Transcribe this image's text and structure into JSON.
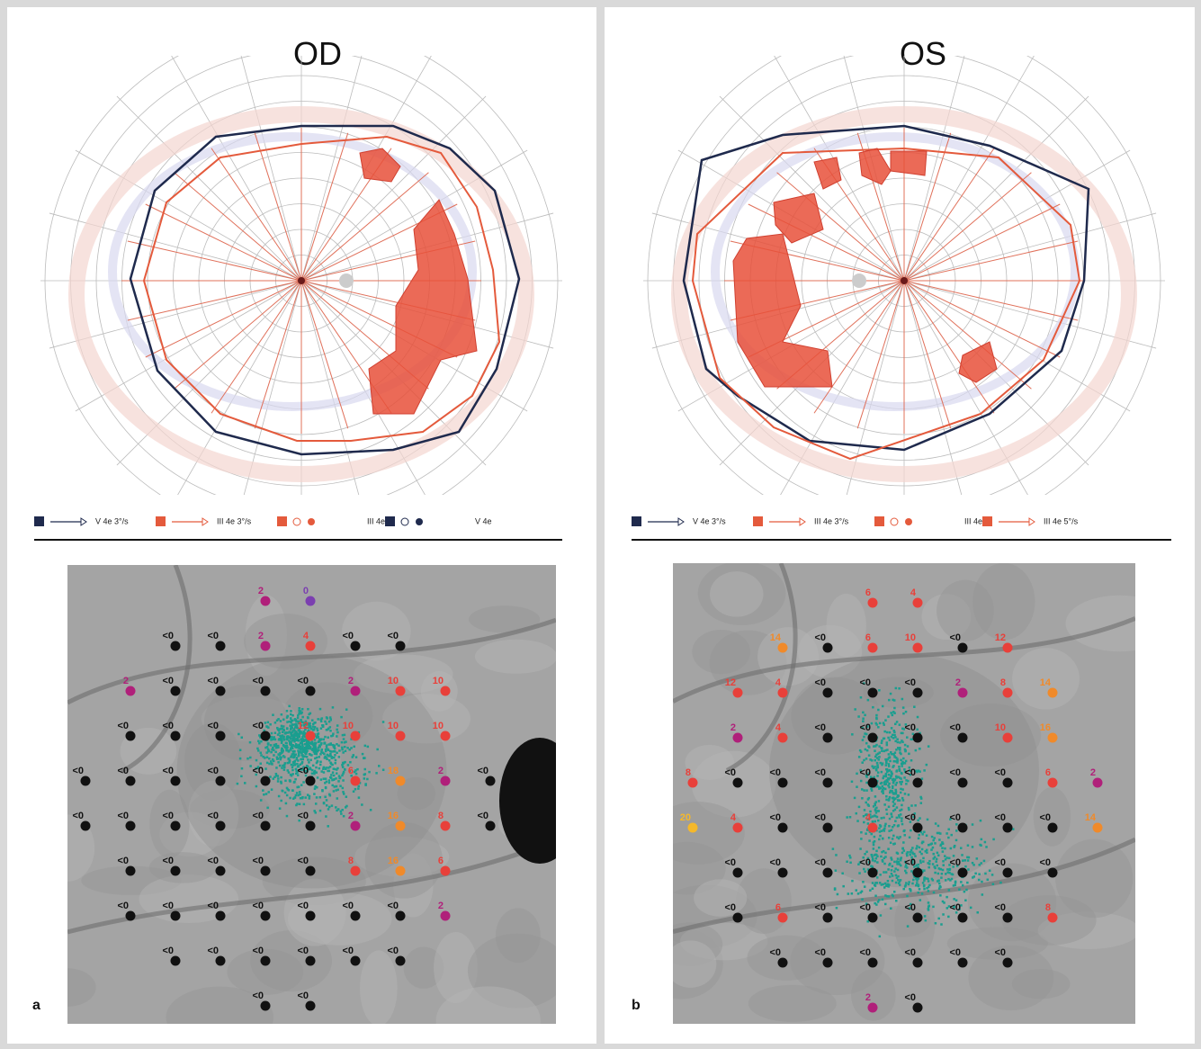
{
  "panels": [
    {
      "title": "OD",
      "label": "a",
      "legend": [
        "V 4e 3°/s",
        "III 4e 3°/s",
        "III 4e",
        "V 4e"
      ],
      "grid": [
        [
          null,
          null,
          null,
          null,
          "2",
          "0",
          null,
          null,
          null,
          null
        ],
        [
          null,
          null,
          "<0",
          "<0",
          "2",
          "4",
          "<0",
          "<0",
          null,
          null
        ],
        [
          null,
          "2",
          "<0",
          "<0",
          "<0",
          "<0",
          "2",
          "10",
          "10",
          null
        ],
        [
          null,
          "<0",
          "<0",
          "<0",
          "<0",
          "12",
          "10",
          "10",
          "10",
          null
        ],
        [
          "<0",
          "<0",
          "<0",
          "<0",
          "<0",
          "<0",
          "6",
          "18",
          "2",
          "<0"
        ],
        [
          "<0",
          "<0",
          "<0",
          "<0",
          "<0",
          "<0",
          "2",
          "16",
          "8",
          "<0"
        ],
        [
          null,
          "<0",
          "<0",
          "<0",
          "<0",
          "<0",
          "8",
          "16",
          "6",
          null
        ],
        [
          null,
          "<0",
          "<0",
          "<0",
          "<0",
          "<0",
          "<0",
          "<0",
          "2",
          null
        ],
        [
          null,
          null,
          "<0",
          "<0",
          "<0",
          "<0",
          "<0",
          "<0",
          null,
          null
        ],
        [
          null,
          null,
          null,
          null,
          "<0",
          "<0",
          null,
          null,
          null,
          null
        ]
      ]
    },
    {
      "title": "OS",
      "label": "b",
      "legend": [
        "V 4e 3°/s",
        "III 4e 3°/s",
        "III 4e",
        "III 4e 5°/s"
      ],
      "grid": [
        [
          null,
          null,
          null,
          null,
          "6",
          "4",
          null,
          null,
          null,
          null
        ],
        [
          null,
          null,
          "14",
          "<0",
          "6",
          "10",
          "<0",
          "12",
          null,
          null
        ],
        [
          null,
          "12",
          "4",
          "<0",
          "<0",
          "<0",
          "2",
          "8",
          "14",
          null
        ],
        [
          null,
          "2",
          "4",
          "<0",
          "<0",
          "<0",
          "<0",
          "10",
          "16",
          null
        ],
        [
          "8",
          "<0",
          "<0",
          "<0",
          "<0",
          "<0",
          "<0",
          "<0",
          "6",
          "2"
        ],
        [
          "20",
          "4",
          "<0",
          "<0",
          "4",
          "<0",
          "<0",
          "<0",
          "<0",
          "14"
        ],
        [
          null,
          "<0",
          "<0",
          "<0",
          "<0",
          "<0",
          "<0",
          "<0",
          "<0",
          null
        ],
        [
          null,
          "<0",
          "6",
          "<0",
          "<0",
          "<0",
          "<0",
          "<0",
          "8",
          null
        ],
        [
          null,
          null,
          "<0",
          "<0",
          "<0",
          "<0",
          "<0",
          "<0",
          null,
          null
        ],
        [
          null,
          null,
          null,
          null,
          "2",
          "<0",
          null,
          null,
          null,
          null
        ]
      ]
    }
  ]
}
